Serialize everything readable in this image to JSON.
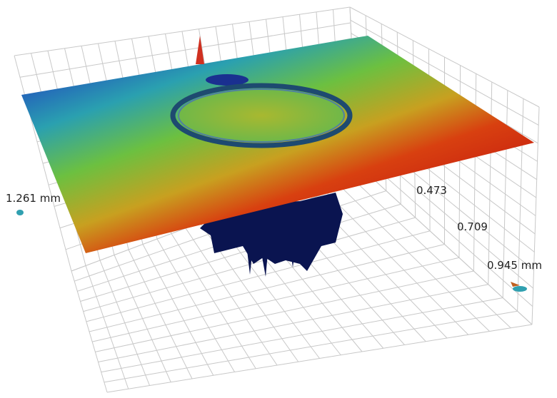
{
  "axis_labels": [
    "1.261 mm",
    "0.473",
    "0.709",
    "0.945 mm"
  ]
}
